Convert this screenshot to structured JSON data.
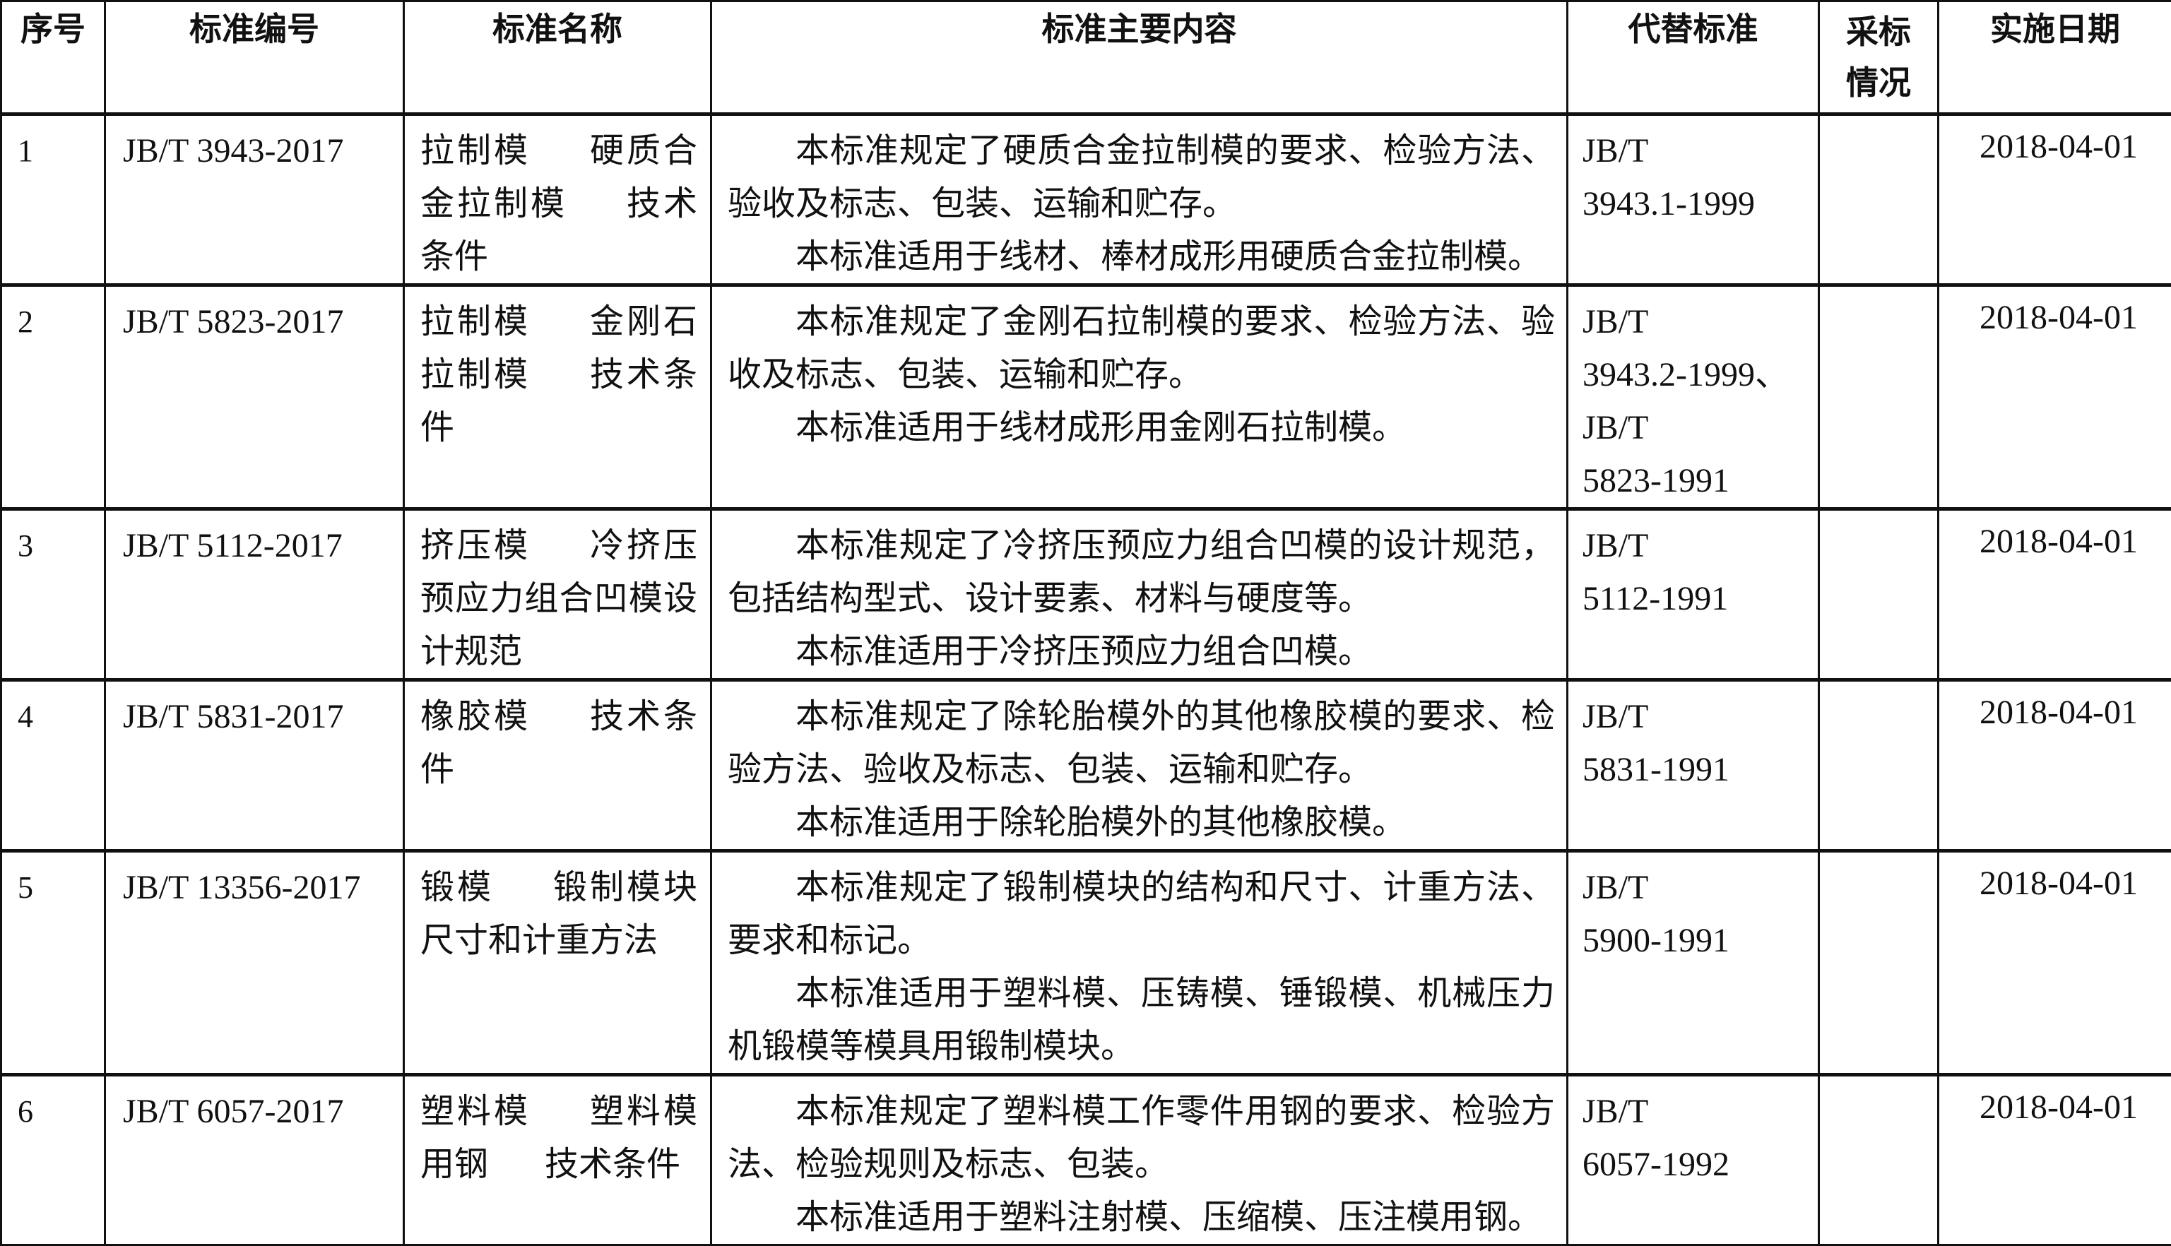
{
  "headers": [
    "序号",
    "标准编号",
    "标准名称",
    "标准主要内容",
    "代替标准",
    "采标情况",
    "实施日期"
  ],
  "rows": [
    {
      "no": "1",
      "code": "JB/T 3943-2017",
      "name": [
        "拉制模",
        "硬质合金拉制模",
        "技术条件"
      ],
      "content": [
        "本标准规定了硬质合金拉制模的要求、检验方法、验收及标志、包装、运输和贮存。",
        "本标准适用于线材、棒材成形用硬质合金拉制模。"
      ],
      "replaced": [
        "JB/T",
        "3943.1-1999"
      ],
      "adoption": "",
      "date": "2018-04-01"
    },
    {
      "no": "2",
      "code": "JB/T 5823-2017",
      "name": [
        "拉制模",
        "金刚石拉制模",
        "技术条件"
      ],
      "content": [
        "本标准规定了金刚石拉制模的要求、检验方法、验收及标志、包装、运输和贮存。",
        "本标准适用于线材成形用金刚石拉制模。"
      ],
      "replaced": [
        "JB/T",
        "3943.2-1999、",
        "JB/T",
        "5823-1991"
      ],
      "adoption": "",
      "date": "2018-04-01"
    },
    {
      "no": "3",
      "code": "JB/T 5112-2017",
      "name": [
        "挤压模",
        "冷挤压预应力组合凹模设计规范"
      ],
      "content": [
        "本标准规定了冷挤压预应力组合凹模的设计规范，包括结构型式、设计要素、材料与硬度等。",
        "本标准适用于冷挤压预应力组合凹模。"
      ],
      "replaced": [
        "JB/T",
        "5112-1991"
      ],
      "adoption": "",
      "date": "2018-04-01"
    },
    {
      "no": "4",
      "code": "JB/T 5831-2017",
      "name": [
        "橡胶模",
        "技术条件"
      ],
      "content": [
        "本标准规定了除轮胎模外的其他橡胶模的要求、检验方法、验收及标志、包装、运输和贮存。",
        "本标准适用于除轮胎模外的其他橡胶模。"
      ],
      "replaced": [
        "JB/T",
        "5831-1991"
      ],
      "adoption": "",
      "date": "2018-04-01"
    },
    {
      "no": "5",
      "code": "JB/T 13356-2017",
      "name": [
        "锻模",
        "锻制模块尺寸和计重方法"
      ],
      "content": [
        "本标准规定了锻制模块的结构和尺寸、计重方法、要求和标记。",
        "本标准适用于塑料模、压铸模、锤锻模、机械压力机锻模等模具用锻制模块。"
      ],
      "replaced": [
        "JB/T",
        "5900-1991"
      ],
      "adoption": "",
      "date": "2018-04-01"
    },
    {
      "no": "6",
      "code": "JB/T 6057-2017",
      "name": [
        "塑料模",
        "塑料模用钢",
        "技术条件"
      ],
      "content": [
        "本标准规定了塑料模工作零件用钢的要求、检验方法、检验规则及标志、包装。",
        "本标准适用于塑料注射模、压缩模、压注模用钢。"
      ],
      "replaced": [
        "JB/T",
        "6057-1992"
      ],
      "adoption": "",
      "date": "2018-04-01"
    }
  ]
}
